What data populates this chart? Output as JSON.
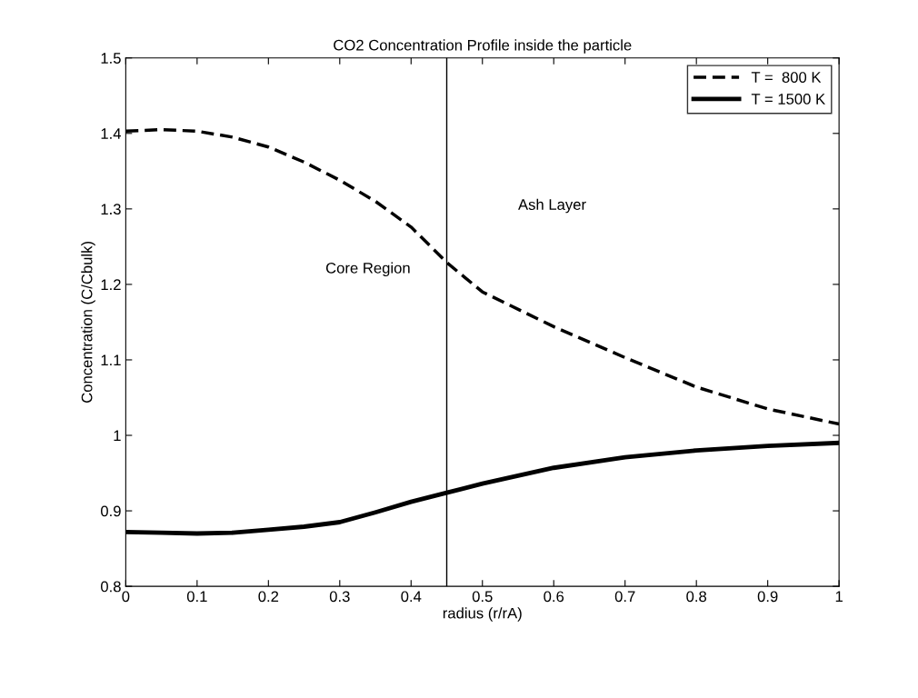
{
  "chart_data": {
    "type": "line",
    "title": "CO2 Concentration Profile inside the particle",
    "xlabel": "radius (r/rA)",
    "ylabel": "Concentration (C/Cbulk)",
    "x": [
      0,
      0.05,
      0.1,
      0.15,
      0.2,
      0.25,
      0.3,
      0.35,
      0.4,
      0.45,
      0.5,
      0.6,
      0.7,
      0.8,
      0.9,
      1
    ],
    "series": [
      {
        "name": "T =  800 K",
        "color": "#000000",
        "line_style": "dashed",
        "values": [
          1.403,
          1.405,
          1.403,
          1.395,
          1.382,
          1.362,
          1.338,
          1.31,
          1.276,
          1.229,
          1.19,
          1.144,
          1.103,
          1.064,
          1.035,
          1.015
        ]
      },
      {
        "name": "T = 1500 K",
        "color": "#000000",
        "line_style": "solid",
        "values": [
          0.872,
          0.871,
          0.87,
          0.871,
          0.875,
          0.879,
          0.885,
          0.898,
          0.912,
          0.924,
          0.936,
          0.957,
          0.971,
          0.98,
          0.986,
          0.99
        ]
      }
    ],
    "xlim": [
      0,
      1
    ],
    "xticks": [
      0,
      0.1,
      0.2,
      0.3,
      0.4,
      0.5,
      0.6,
      0.7,
      0.8,
      0.9,
      1
    ],
    "ylim": [
      0.8,
      1.5
    ],
    "yticks": [
      0.8,
      0.9,
      1,
      1.1,
      1.2,
      1.3,
      1.4,
      1.5
    ],
    "ref_lines": [
      {
        "axis": "x",
        "value": 0.45,
        "color": "#000000"
      }
    ],
    "annotations": [
      "Core Region",
      "Ash Layer"
    ],
    "grid": false,
    "legend": "top right",
    "marker": "none"
  }
}
